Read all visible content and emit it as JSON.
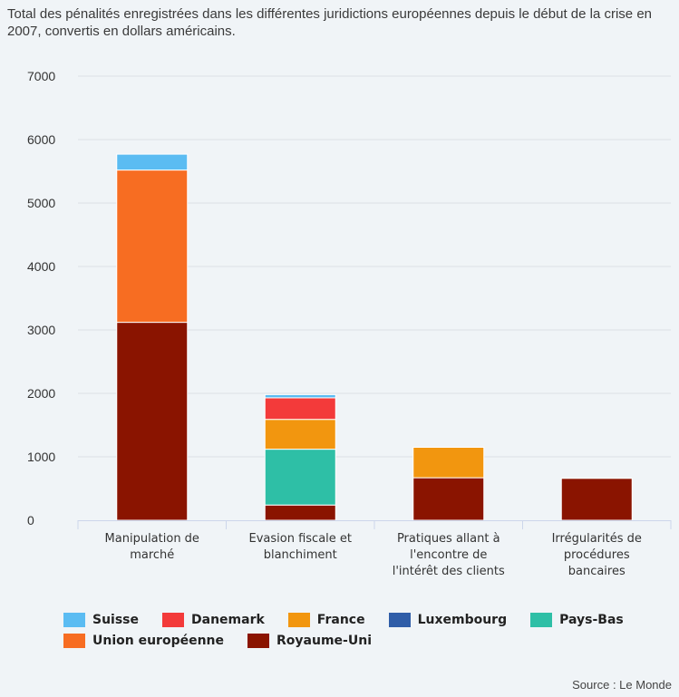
{
  "subtitle": "Total des pénalités enregistrées dans les différentes juridictions européennes depuis le début de la crise en 2007, convertis en dollars américains.",
  "source": "Source : Le Monde",
  "colors": {
    "Suisse": "#5bbcf2",
    "Danemark": "#f33a3a",
    "France": "#f2960f",
    "Luxembourg": "#2f5da8",
    "Pays-Bas": "#2ebfa6",
    "Union européenne": "#f76d22",
    "Royaume-Uni": "#8a1400"
  },
  "chart_data": {
    "type": "bar",
    "stacked": true,
    "title": "",
    "xlabel": "",
    "ylabel": "",
    "ylim": [
      0,
      7000
    ],
    "yticks": [
      0,
      1000,
      2000,
      3000,
      4000,
      5000,
      6000,
      7000
    ],
    "grid": true,
    "legend_position": "bottom",
    "categories": [
      [
        "Manipulation de",
        "marché"
      ],
      [
        "Evasion fiscale et",
        "blanchiment"
      ],
      [
        "Pratiques allant à",
        "l'encontre de",
        "l'intérêt des clients"
      ],
      [
        "Irrégularités de",
        "procédures",
        "bancaires"
      ]
    ],
    "series": [
      {
        "name": "Royaume-Uni",
        "values": [
          3120,
          240,
          670,
          660
        ]
      },
      {
        "name": "Union européenne",
        "values": [
          2400,
          0,
          0,
          0
        ]
      },
      {
        "name": "Pays-Bas",
        "values": [
          0,
          880,
          0,
          0
        ]
      },
      {
        "name": "Luxembourg",
        "values": [
          0,
          0,
          0,
          0
        ]
      },
      {
        "name": "France",
        "values": [
          0,
          470,
          480,
          0
        ]
      },
      {
        "name": "Danemark",
        "values": [
          0,
          340,
          0,
          0
        ]
      },
      {
        "name": "Suisse",
        "values": [
          250,
          50,
          0,
          0
        ]
      }
    ],
    "legend": [
      [
        "Suisse",
        "Danemark",
        "France",
        "Luxembourg",
        "Pays-Bas"
      ],
      [
        "Union européenne",
        "Royaume-Uni"
      ]
    ]
  }
}
